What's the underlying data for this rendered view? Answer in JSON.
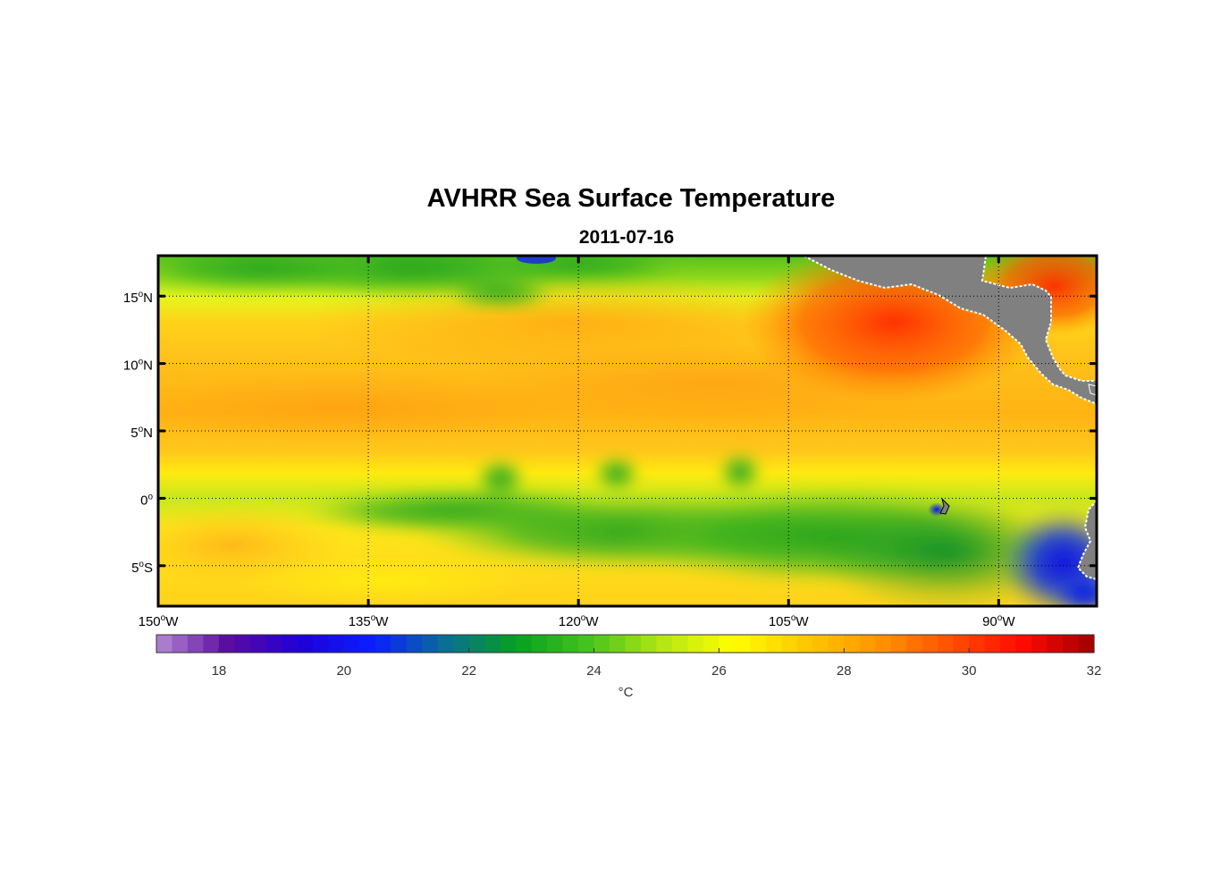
{
  "title": "AVHRR Sea Surface Temperature",
  "subtitle": "2011-07-16",
  "map": {
    "lon_range": [
      -150,
      -83
    ],
    "lat_range": [
      -8,
      18
    ],
    "lat_ticks": [
      {
        "value": 15,
        "label": "15",
        "suffix": "N"
      },
      {
        "value": 10,
        "label": "10",
        "suffix": "N"
      },
      {
        "value": 5,
        "label": "5",
        "suffix": "N"
      },
      {
        "value": 0,
        "label": "0",
        "suffix": ""
      },
      {
        "value": -5,
        "label": "5",
        "suffix": "S"
      }
    ],
    "lon_ticks": [
      {
        "value": -150,
        "label": "150",
        "suffix": "W"
      },
      {
        "value": -135,
        "label": "135",
        "suffix": "W"
      },
      {
        "value": -120,
        "label": "120",
        "suffix": "W"
      },
      {
        "value": -105,
        "label": "105",
        "suffix": "W"
      },
      {
        "value": -90,
        "label": "90",
        "suffix": "W"
      }
    ],
    "land_color": "#808080",
    "grid": "dotted"
  },
  "colorbar": {
    "min": 17,
    "max": 32,
    "ticks": [
      18,
      20,
      22,
      24,
      26,
      28,
      30,
      32
    ],
    "unit": "°C",
    "stops": [
      "#b48ad2",
      "#5a0aa0",
      "#1f00d8",
      "#0a1eff",
      "#0a6e96",
      "#06a01e",
      "#46c41e",
      "#b4e614",
      "#ffff00",
      "#ffc800",
      "#ff9600",
      "#ff5000",
      "#ff0a00",
      "#a00000"
    ]
  }
}
